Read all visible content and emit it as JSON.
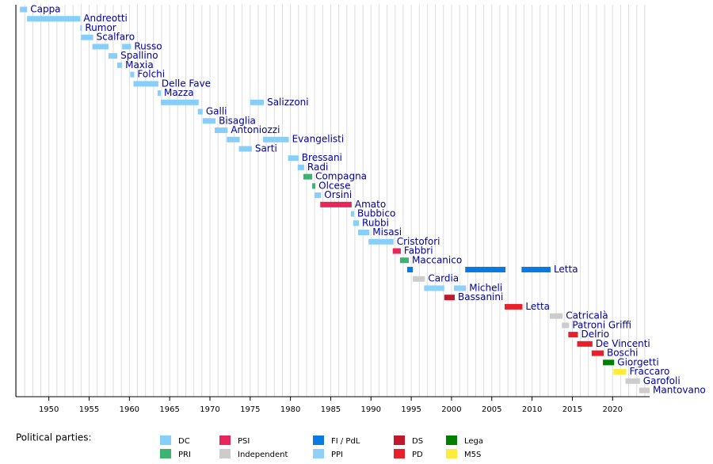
{
  "chart_data": {
    "type": "timeline",
    "xlim": [
      1945.9,
      2024.6
    ],
    "xticks": [
      1950,
      1955,
      1960,
      1965,
      1970,
      1975,
      1980,
      1985,
      1990,
      1995,
      2000,
      2005,
      2010,
      2015,
      2020
    ],
    "grid_years": [
      1946,
      1947,
      1948,
      1949,
      1950,
      1951,
      1952,
      1953,
      1954,
      1955,
      1956,
      1957,
      1958,
      1959,
      1960,
      1961,
      1962,
      1963,
      1964,
      1965,
      1966,
      1967,
      1968,
      1969,
      1970,
      1971,
      1972,
      1973,
      1974,
      1975,
      1976,
      1977,
      1978,
      1979,
      1980,
      1981,
      1982,
      1983,
      1984,
      1985,
      1986,
      1987,
      1988,
      1989,
      1990,
      1991,
      1992,
      1993,
      1994,
      1995,
      1996,
      1997,
      1998,
      1999,
      2000,
      2001,
      2002,
      2003,
      2004,
      2005,
      2006,
      2007,
      2008,
      2009,
      2010,
      2011,
      2012,
      2013,
      2014,
      2015,
      2016,
      2017,
      2018,
      2019,
      2020,
      2021,
      2022,
      2023,
      2024
    ],
    "legend_title": "Political parties:",
    "legend": [
      {
        "name": "DC",
        "color": "#87cefa"
      },
      {
        "name": "PRI",
        "color": "#3cb371"
      },
      {
        "name": "PSI",
        "color": "#e8265a"
      },
      {
        "name": "Independent",
        "color": "#cccccc"
      },
      {
        "name": "FI / PdL",
        "color": "#0a7ae0"
      },
      {
        "name": "PPI",
        "color": "#8fd0f8"
      },
      {
        "name": "DS",
        "color": "#c0182c"
      },
      {
        "name": "PD",
        "color": "#e8202a"
      },
      {
        "name": "Lega",
        "color": "#008000"
      },
      {
        "name": "M5S",
        "color": "#ffeb3b"
      }
    ],
    "rows": [
      {
        "name": "Cappa",
        "color": "#87cefa",
        "periods": [
          [
            1946.4,
            1947.3
          ]
        ]
      },
      {
        "name": "Andreotti",
        "color": "#87cefa",
        "periods": [
          [
            1947.3,
            1953.9
          ]
        ]
      },
      {
        "name": "Rumor",
        "color": "#87cefa",
        "periods": [
          [
            1953.9,
            1954.1
          ]
        ]
      },
      {
        "name": "Scalfaro",
        "color": "#87cefa",
        "periods": [
          [
            1954.0,
            1955.5
          ]
        ]
      },
      {
        "name": "Russo",
        "color": "#87cefa",
        "periods": [
          [
            1955.4,
            1957.4
          ],
          [
            1959.1,
            1960.2
          ]
        ]
      },
      {
        "name": "Spallino",
        "color": "#87cefa",
        "periods": [
          [
            1957.4,
            1958.5
          ]
        ]
      },
      {
        "name": "Maxia",
        "color": "#87cefa",
        "periods": [
          [
            1958.5,
            1959.1
          ]
        ]
      },
      {
        "name": "Folchi",
        "color": "#87cefa",
        "periods": [
          [
            1960.1,
            1960.6
          ]
        ]
      },
      {
        "name": "Delle Fave",
        "color": "#87cefa",
        "periods": [
          [
            1960.5,
            1963.6
          ]
        ]
      },
      {
        "name": "Mazza",
        "color": "#87cefa",
        "periods": [
          [
            1963.5,
            1963.9
          ]
        ]
      },
      {
        "name": "Salizzoni",
        "color": "#87cefa",
        "periods": [
          [
            1963.9,
            1968.6
          ],
          [
            1975.0,
            1976.7
          ]
        ]
      },
      {
        "name": "Galli",
        "color": "#87cefa",
        "periods": [
          [
            1968.5,
            1969.1
          ]
        ]
      },
      {
        "name": "Bisaglia",
        "color": "#87cefa",
        "periods": [
          [
            1969.1,
            1970.7
          ]
        ]
      },
      {
        "name": "Antoniozzi",
        "color": "#87cefa",
        "periods": [
          [
            1970.6,
            1972.2
          ]
        ]
      },
      {
        "name": "Evangelisti",
        "color": "#87cefa",
        "periods": [
          [
            1972.1,
            1973.7
          ],
          [
            1976.6,
            1979.8
          ]
        ]
      },
      {
        "name": "Sarti",
        "color": "#87cefa",
        "periods": [
          [
            1973.6,
            1975.2
          ]
        ]
      },
      {
        "name": "Bressani",
        "color": "#87cefa",
        "periods": [
          [
            1979.7,
            1981.0
          ]
        ]
      },
      {
        "name": "Radi",
        "color": "#87cefa",
        "periods": [
          [
            1980.9,
            1981.7
          ]
        ]
      },
      {
        "name": "Compagna",
        "color": "#3cb371",
        "periods": [
          [
            1981.6,
            1982.7
          ]
        ]
      },
      {
        "name": "Olcese",
        "color": "#3cb371",
        "periods": [
          [
            1982.7,
            1983.1
          ]
        ]
      },
      {
        "name": "Orsini",
        "color": "#87cefa",
        "periods": [
          [
            1983.0,
            1983.8
          ]
        ]
      },
      {
        "name": "Amato",
        "color": "#e8265a",
        "periods": [
          [
            1983.7,
            1987.6
          ]
        ]
      },
      {
        "name": "Bubbico",
        "color": "#87cefa",
        "periods": [
          [
            1987.5,
            1987.9
          ]
        ]
      },
      {
        "name": "Rubbi",
        "color": "#87cefa",
        "periods": [
          [
            1987.8,
            1988.5
          ]
        ]
      },
      {
        "name": "Misasi",
        "color": "#87cefa",
        "periods": [
          [
            1988.4,
            1989.8
          ]
        ]
      },
      {
        "name": "Cristofori",
        "color": "#87cefa",
        "periods": [
          [
            1989.7,
            1992.8
          ]
        ]
      },
      {
        "name": "Fabbri",
        "color": "#e8265a",
        "periods": [
          [
            1992.7,
            1993.7
          ]
        ]
      },
      {
        "name": "Maccanico",
        "color": "#3cb371",
        "periods": [
          [
            1993.6,
            1994.7
          ]
        ]
      },
      {
        "name": "Letta",
        "color": "#0a7ae0",
        "periods": [
          [
            1994.5,
            1995.2
          ],
          [
            2001.7,
            2006.7
          ],
          [
            2008.7,
            2012.3
          ]
        ]
      },
      {
        "name": "Cardia",
        "color": "#cccccc",
        "periods": [
          [
            1995.2,
            1996.7
          ]
        ]
      },
      {
        "name": "Micheli",
        "color": "#8fd0f8",
        "periods": [
          [
            1996.6,
            1999.1
          ],
          [
            2000.3,
            2001.8
          ]
        ]
      },
      {
        "name": "Bassanini",
        "color": "#c0182c",
        "periods": [
          [
            1999.1,
            2000.4
          ]
        ]
      },
      {
        "name": "Letta",
        "color": "#e8202a",
        "periods": [
          [
            2006.6,
            2008.8
          ]
        ]
      },
      {
        "name": "Catricalà",
        "color": "#cccccc",
        "periods": [
          [
            2012.2,
            2013.8
          ]
        ]
      },
      {
        "name": "Patroni Griffi",
        "color": "#cccccc",
        "periods": [
          [
            2013.7,
            2014.6
          ]
        ]
      },
      {
        "name": "Delrio",
        "color": "#e8202a",
        "periods": [
          [
            2014.5,
            2015.7
          ]
        ]
      },
      {
        "name": "De Vincenti",
        "color": "#e8202a",
        "periods": [
          [
            2015.6,
            2017.5
          ]
        ]
      },
      {
        "name": "Boschi",
        "color": "#e8202a",
        "periods": [
          [
            2017.4,
            2018.9
          ]
        ]
      },
      {
        "name": "Giorgetti",
        "color": "#008000",
        "periods": [
          [
            2018.8,
            2020.2
          ]
        ]
      },
      {
        "name": "Fraccaro",
        "color": "#ffeb3b",
        "periods": [
          [
            2020.1,
            2021.7
          ]
        ]
      },
      {
        "name": "Garofoli",
        "color": "#cccccc",
        "periods": [
          [
            2021.6,
            2023.4
          ]
        ]
      },
      {
        "name": "Mantovano",
        "color": "#cccccc",
        "periods": [
          [
            2023.3,
            2024.6
          ]
        ]
      }
    ]
  }
}
